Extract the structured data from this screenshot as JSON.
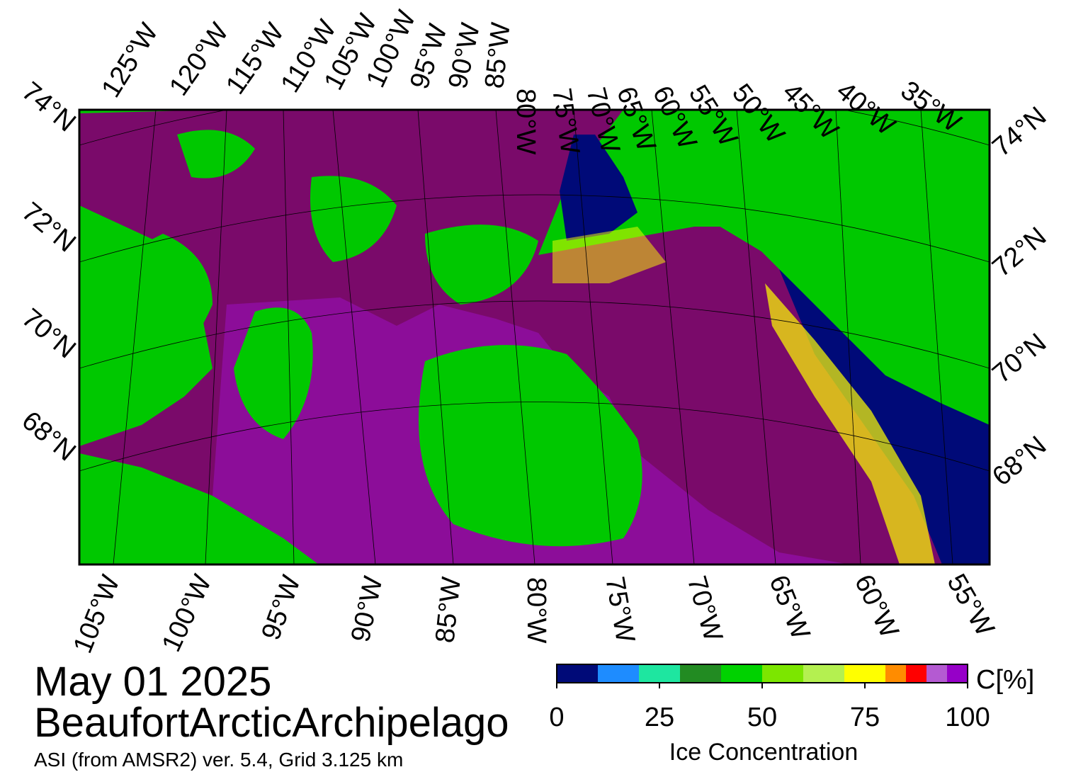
{
  "map": {
    "top_longitudes": [
      "125°W",
      "120°W",
      "115°W",
      "110°W",
      "105°W",
      "100°W",
      "95°W",
      "90°W",
      "85°W",
      "80°W",
      "75°W",
      "70°W",
      "65°W",
      "60°W",
      "55°W",
      "50°W",
      "45°W",
      "40°W",
      "35°W"
    ],
    "bottom_longitudes": [
      "105°W",
      "100°W",
      "95°W",
      "90°W",
      "85°W",
      "80°W",
      "75°W",
      "70°W",
      "65°W",
      "60°W",
      "55°W"
    ],
    "left_latitudes": [
      "74°N",
      "72°N",
      "70°N",
      "68°N"
    ],
    "right_latitudes": [
      "74°N",
      "72°N",
      "70°N",
      "68°N"
    ]
  },
  "date": "May 01 2025",
  "region": "BeaufortArcticArchipelago",
  "source": "ASI (from AMSR2) ver. 5.4,  Grid 3.125 km",
  "colorbar": {
    "label": "C[%]",
    "title": "Ice Concentration",
    "ticks": [
      0,
      25,
      50,
      75,
      100
    ],
    "bounds": [
      0,
      10,
      20,
      30,
      40,
      50,
      60,
      70,
      80,
      85,
      90,
      95,
      100
    ],
    "colors": [
      "#000a78",
      "#1e8cff",
      "#1ee6a0",
      "#228b22",
      "#00d200",
      "#7ce600",
      "#b4f050",
      "#ffff00",
      "#ff8c00",
      "#ff0000",
      "#b45ad2",
      "#9600c8"
    ]
  }
}
